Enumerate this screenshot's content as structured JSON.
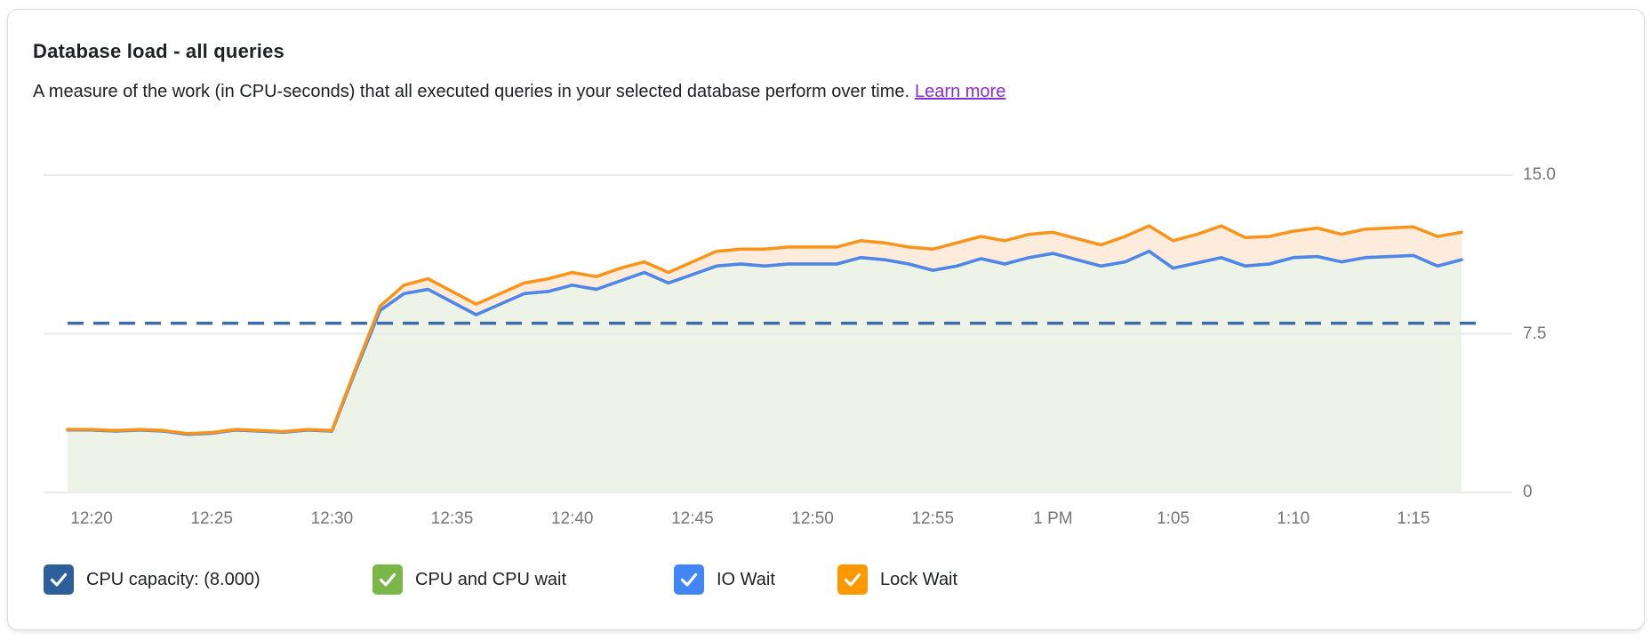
{
  "header": {
    "title": "Database load - all queries",
    "subtitle": "A measure of the work (in CPU-seconds) that all executed queries in your selected database perform over time.",
    "learn_more_label": "Learn more",
    "link_color": "#8430ce"
  },
  "chart_data": {
    "type": "area",
    "title": "Database load - all queries",
    "ylabel": "CPU-seconds",
    "ylim": [
      0,
      15
    ],
    "grid": true,
    "legend_position": "bottom",
    "yticks": [
      {
        "value": 0,
        "label": "0"
      },
      {
        "value": 7.5,
        "label": "7.5"
      },
      {
        "value": 15,
        "label": "15.0"
      }
    ],
    "x_tick_labels": [
      "12:20",
      "12:25",
      "12:30",
      "12:35",
      "12:40",
      "12:45",
      "12:50",
      "12:55",
      "1 PM",
      "1:05",
      "1:10",
      "1:15"
    ],
    "x_times": [
      "12:19",
      "12:20",
      "12:21",
      "12:22",
      "12:23",
      "12:24",
      "12:25",
      "12:26",
      "12:27",
      "12:28",
      "12:29",
      "12:30",
      "12:31",
      "12:32",
      "12:33",
      "12:34",
      "12:35",
      "12:36",
      "12:37",
      "12:38",
      "12:39",
      "12:40",
      "12:41",
      "12:42",
      "12:43",
      "12:44",
      "12:45",
      "12:46",
      "12:47",
      "12:48",
      "12:49",
      "12:50",
      "12:51",
      "12:52",
      "12:53",
      "12:54",
      "12:55",
      "12:56",
      "12:57",
      "12:58",
      "12:59",
      "1:00",
      "1:01",
      "1:02",
      "1:03",
      "1:04",
      "1:05",
      "1:06",
      "1:07",
      "1:08",
      "1:09",
      "1:10",
      "1:11",
      "1:12",
      "1:13",
      "1:14",
      "1:15",
      "1:16",
      "1:17"
    ],
    "capacity_line": {
      "name": "CPU capacity",
      "value": 8.0,
      "color": "#3c6ba6",
      "style": "dashed"
    },
    "series": [
      {
        "name": "CPU and CPU wait",
        "color": "#7ab648",
        "area_fill": "#eef3e8",
        "values": [
          2.95,
          2.95,
          2.9,
          2.95,
          2.9,
          2.75,
          2.8,
          2.95,
          2.9,
          2.85,
          2.95,
          2.9,
          5.8,
          8.6,
          9.4,
          9.6,
          9.0,
          8.4,
          8.9,
          9.4,
          9.5,
          9.8,
          9.6,
          10.0,
          10.4,
          9.9,
          10.3,
          10.7,
          10.8,
          10.7,
          10.8,
          10.8,
          10.8,
          11.1,
          11.0,
          10.8,
          10.5,
          10.7,
          11.05,
          10.8,
          11.1,
          11.3,
          11.0,
          10.7,
          10.9,
          11.4,
          10.6,
          10.85,
          11.1,
          10.7,
          10.8,
          11.1,
          11.15,
          10.9,
          11.1,
          11.15,
          11.2,
          10.7,
          11.0
        ]
      },
      {
        "name": "IO Wait",
        "color": "#4e86ec",
        "values": [
          2.95,
          2.95,
          2.9,
          2.95,
          2.9,
          2.75,
          2.8,
          2.95,
          2.9,
          2.85,
          2.95,
          2.9,
          5.8,
          8.6,
          9.4,
          9.6,
          9.0,
          8.4,
          8.9,
          9.4,
          9.5,
          9.8,
          9.6,
          10.0,
          10.4,
          9.9,
          10.3,
          10.7,
          10.8,
          10.7,
          10.8,
          10.8,
          10.8,
          11.1,
          11.0,
          10.8,
          10.5,
          10.7,
          11.05,
          10.8,
          11.1,
          11.3,
          11.0,
          10.7,
          10.9,
          11.4,
          10.6,
          10.85,
          11.1,
          10.7,
          10.8,
          11.1,
          11.15,
          10.9,
          11.1,
          11.15,
          11.2,
          10.7,
          11.0
        ]
      },
      {
        "name": "Lock Wait",
        "color": "#fa9419",
        "area_fill": "#fdecdb",
        "values": [
          2.98,
          2.98,
          2.93,
          2.98,
          2.93,
          2.78,
          2.83,
          2.98,
          2.93,
          2.88,
          2.98,
          2.93,
          5.9,
          8.8,
          9.8,
          10.1,
          9.5,
          8.9,
          9.4,
          9.9,
          10.1,
          10.4,
          10.2,
          10.6,
          10.9,
          10.4,
          10.9,
          11.4,
          11.5,
          11.5,
          11.6,
          11.6,
          11.6,
          11.9,
          11.8,
          11.6,
          11.5,
          11.8,
          12.1,
          11.9,
          12.2,
          12.3,
          12.0,
          11.7,
          12.1,
          12.6,
          11.9,
          12.2,
          12.6,
          12.05,
          12.1,
          12.35,
          12.5,
          12.2,
          12.45,
          12.5,
          12.55,
          12.1,
          12.3
        ]
      }
    ]
  },
  "legend": {
    "items": [
      {
        "id": "cpu-capacity",
        "label": "CPU capacity: (8.000)",
        "color": "#2d5f9a",
        "checked": true
      },
      {
        "id": "cpu-and-cpu-wait",
        "label": "CPU and CPU wait",
        "color": "#7ab648",
        "checked": true
      },
      {
        "id": "io-wait",
        "label": "IO Wait",
        "color": "#4285f4",
        "checked": true
      },
      {
        "id": "lock-wait",
        "label": "Lock Wait",
        "color": "#ff9800",
        "checked": true
      }
    ]
  },
  "colors": {
    "grid": "#e8eaed",
    "axis_label": "#757575",
    "text": "#202124",
    "card_border": "#dadce0"
  }
}
